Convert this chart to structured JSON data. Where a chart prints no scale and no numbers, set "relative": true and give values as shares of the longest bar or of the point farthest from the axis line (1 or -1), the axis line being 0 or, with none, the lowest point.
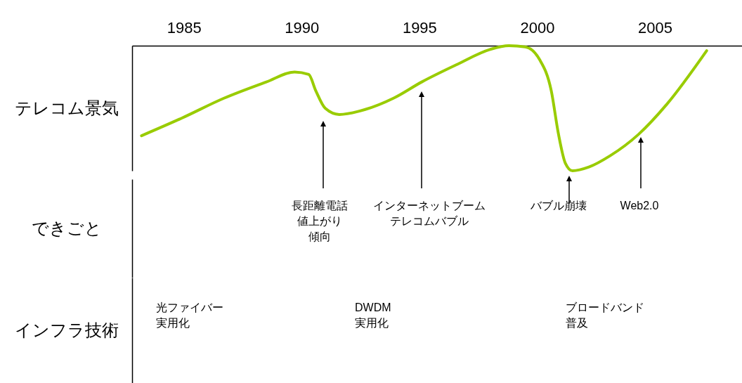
{
  "chart_data": [
    {
      "type": "line",
      "relative": true,
      "ylabel": "テレコム景気",
      "color": "#99cc00",
      "xlim": [
        1982.8,
        2008.7
      ],
      "xticks": [
        1985,
        1990,
        1995,
        2000,
        2005
      ],
      "x": [
        1983.2,
        1984.9,
        1986.7,
        1988.5,
        1989.7,
        1990.3,
        1990.6,
        1991.0,
        1991.6,
        1992.7,
        1993.9,
        1995.1,
        1996.6,
        1998.0,
        1998.8,
        1999.5,
        2000.1,
        2000.6,
        2000.9,
        2001.2,
        2001.5,
        2002.2,
        2003.1,
        2004.3,
        2005.5,
        2007.2
      ],
      "values": [
        0.28,
        0.42,
        0.58,
        0.71,
        0.79,
        0.77,
        0.64,
        0.5,
        0.45,
        0.49,
        0.58,
        0.71,
        0.85,
        0.97,
        1.0,
        0.99,
        0.89,
        0.64,
        0.3,
        0.06,
        0,
        0.03,
        0.12,
        0.29,
        0.53,
        0.96
      ]
    },
    {
      "type": "other",
      "ylabel": "できごと",
      "annotations": [
        "長距離電話",
        "値上がり",
        "傾向",
        "インターネットブーム",
        "テレコムバブル",
        "バブル崩壊",
        "Web2.0"
      ]
    },
    {
      "type": "other",
      "ylabel": "インフラ技術",
      "annotations": [
        "光ファイバー",
        "実用化",
        "DWDM",
        "実用化",
        "ブロードバンド",
        "普及"
      ]
    }
  ]
}
